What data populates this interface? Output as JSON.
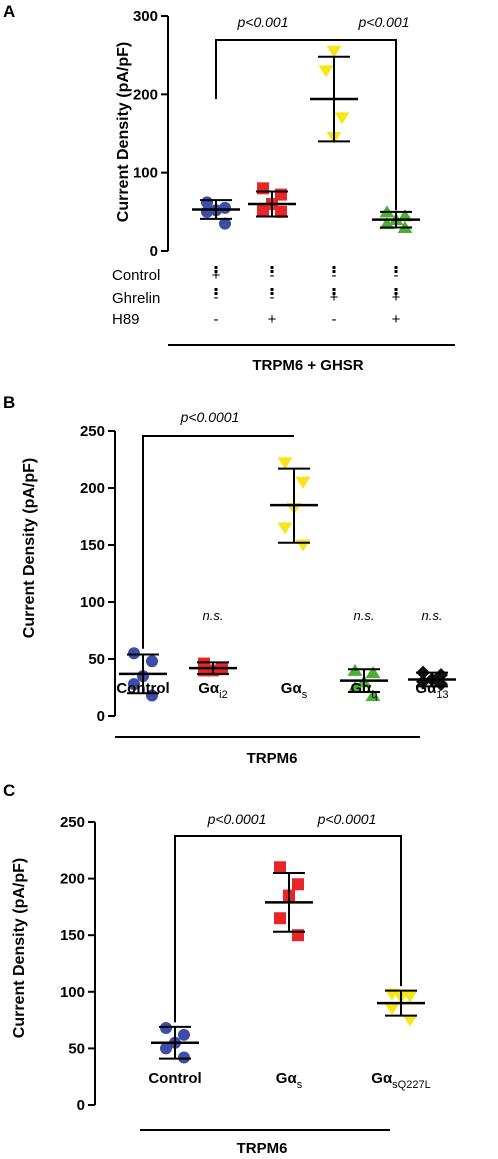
{
  "chart_data": [
    {
      "type": "scatter",
      "panel": "A",
      "ylabel": "Current Density (pA/pF)",
      "ylim": [
        0,
        300
      ],
      "yticks": [
        "0",
        "100",
        "200",
        "300"
      ],
      "condition_rows": [
        {
          "label": "Control",
          "signs": [
            "+",
            "-",
            "-",
            "-"
          ]
        },
        {
          "label": "Ghrelin",
          "signs": [
            "-",
            "-",
            "+",
            "+"
          ]
        },
        {
          "label": "H89",
          "signs": [
            "-",
            "+",
            "-",
            "+"
          ]
        }
      ],
      "group_label": "TRPM6 + GHSR",
      "series": [
        {
          "marker": "circle",
          "color": "#3d4da6",
          "points": [
            62,
            55,
            52,
            50,
            35
          ],
          "mean": 53,
          "sd_low": 41,
          "sd_high": 65
        },
        {
          "marker": "square",
          "color": "#e8262a",
          "points": [
            80,
            72,
            60,
            52,
            50
          ],
          "mean": 60,
          "sd_low": 44,
          "sd_high": 76
        },
        {
          "marker": "triangle-down",
          "color": "#f5e61a",
          "points": [
            255,
            230,
            170,
            145
          ],
          "mean": 194,
          "sd_low": 140,
          "sd_high": 248
        },
        {
          "marker": "triangle",
          "color": "#4caf34",
          "points": [
            50,
            45,
            40,
            35,
            30
          ],
          "mean": 40,
          "sd_low": 30,
          "sd_high": 50
        }
      ],
      "annotations": [
        {
          "text": "p<0.001",
          "from": 0,
          "to": 2
        },
        {
          "text": "p<0.001",
          "from": 2,
          "to": 3
        }
      ]
    },
    {
      "type": "scatter",
      "panel": "B",
      "ylabel": "Current Density (pA/pF)",
      "ylim": [
        0,
        250
      ],
      "yticks": [
        "0",
        "50",
        "100",
        "150",
        "200",
        "250"
      ],
      "categories": [
        {
          "main": "Control",
          "sub": ""
        },
        {
          "main": "Gα",
          "sub": "i2"
        },
        {
          "main": "Gα",
          "sub": "s"
        },
        {
          "main": "Gα",
          "sub": "q"
        },
        {
          "main": "Gα",
          "sub": "13"
        }
      ],
      "group_label": "TRPM6",
      "series": [
        {
          "marker": "circle",
          "color": "#3d4da6",
          "points": [
            55,
            48,
            35,
            28,
            18
          ],
          "mean": 37,
          "sd_low": 20,
          "sd_high": 54
        },
        {
          "marker": "square",
          "color": "#e8262a",
          "points": [
            46,
            42,
            40,
            40,
            41
          ],
          "mean": 42,
          "sd_low": 37,
          "sd_high": 47
        },
        {
          "marker": "triangle-down",
          "color": "#f5e61a",
          "points": [
            222,
            205,
            182,
            165,
            150
          ],
          "mean": 185,
          "sd_low": 152,
          "sd_high": 217
        },
        {
          "marker": "triangle",
          "color": "#4caf34",
          "points": [
            40,
            38,
            30,
            25,
            18
          ],
          "mean": 31,
          "sd_low": 21,
          "sd_high": 41
        },
        {
          "marker": "diamond",
          "color": "#111111",
          "points": [
            38,
            36,
            32,
            30,
            28
          ],
          "mean": 32,
          "sd_low": 26,
          "sd_high": 38
        }
      ],
      "annotations": [
        {
          "text": "p<0.0001",
          "from": 0,
          "to": 2
        }
      ],
      "ns_labels": [
        "",
        "n.s.",
        "",
        "n.s.",
        "n.s."
      ]
    },
    {
      "type": "scatter",
      "panel": "C",
      "ylabel": "Current  Density (pA/pF)",
      "ylim": [
        0,
        250
      ],
      "yticks": [
        "0",
        "50",
        "100",
        "150",
        "200",
        "250"
      ],
      "categories": [
        {
          "main": "Control",
          "sub": ""
        },
        {
          "main": "Gα",
          "sub": "s"
        },
        {
          "main": "Gα",
          "sub": "sQ227L"
        }
      ],
      "group_label": "TRPM6",
      "series": [
        {
          "marker": "circle",
          "color": "#3d4da6",
          "points": [
            68,
            62,
            55,
            50,
            42
          ],
          "mean": 55,
          "sd_low": 41,
          "sd_high": 69
        },
        {
          "marker": "square",
          "color": "#e8262a",
          "points": [
            210,
            195,
            185,
            165,
            150
          ],
          "mean": 179,
          "sd_low": 153,
          "sd_high": 205
        },
        {
          "marker": "triangle-down",
          "color": "#f5e61a",
          "points": [
            98,
            96,
            95,
            85,
            75
          ],
          "mean": 90,
          "sd_low": 79,
          "sd_high": 101
        }
      ],
      "annotations": [
        {
          "text": "p<0.0001",
          "from": 0,
          "to": 1
        },
        {
          "text": "p<0.0001",
          "from": 1,
          "to": 2
        }
      ]
    }
  ]
}
